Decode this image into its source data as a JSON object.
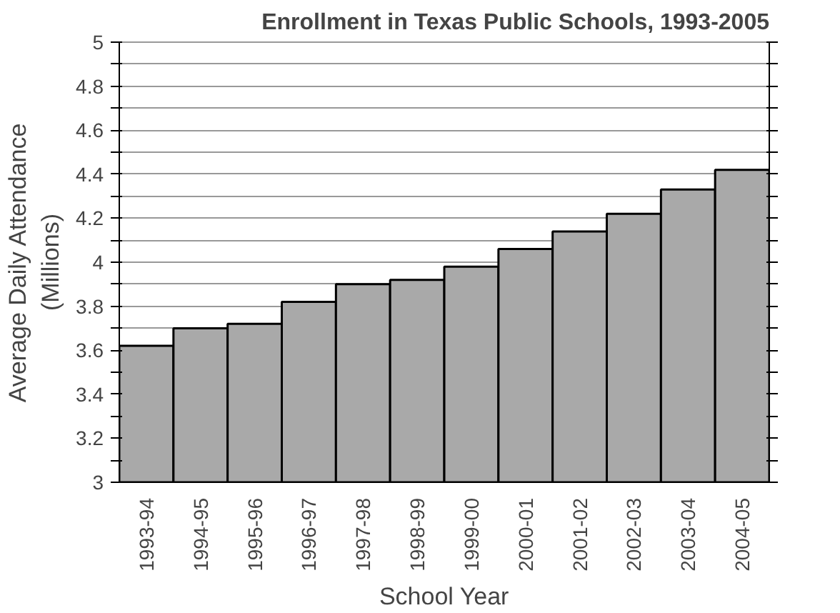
{
  "chart_data": {
    "type": "bar",
    "title": "Enrollment in Texas Public Schools, 1993-2005",
    "xlabel": "School Year",
    "ylabel": "Average Daily Attendance\n(Millions)",
    "categories": [
      "1993-94",
      "1994-95",
      "1995-96",
      "1996-97",
      "1997-98",
      "1998-99",
      "1999-00",
      "2000-01",
      "2001-02",
      "2002-03",
      "2003-04",
      "2004-05"
    ],
    "values": [
      3.62,
      3.7,
      3.72,
      3.82,
      3.9,
      3.92,
      3.98,
      4.06,
      4.14,
      4.22,
      4.33,
      4.42
    ],
    "color": "#a9a9a9",
    "ylim": [
      3,
      5
    ],
    "yticks": [
      3,
      {
        "value": 3.1,
        "label": null
      },
      3.2,
      {
        "value": 3.3,
        "label": null
      },
      3.4,
      {
        "value": 3.5,
        "label": null
      },
      3.6,
      {
        "value": 3.7,
        "label": null
      },
      3.8,
      {
        "value": 3.9,
        "label": null
      },
      4,
      {
        "value": 4.1,
        "label": null
      },
      4.2,
      {
        "value": 4.3,
        "label": null
      },
      4.4,
      {
        "value": 4.5,
        "label": null
      },
      4.6,
      {
        "value": 4.7,
        "label": null
      },
      4.8,
      {
        "value": 4.9,
        "label": null
      },
      5
    ],
    "grid": "y"
  }
}
